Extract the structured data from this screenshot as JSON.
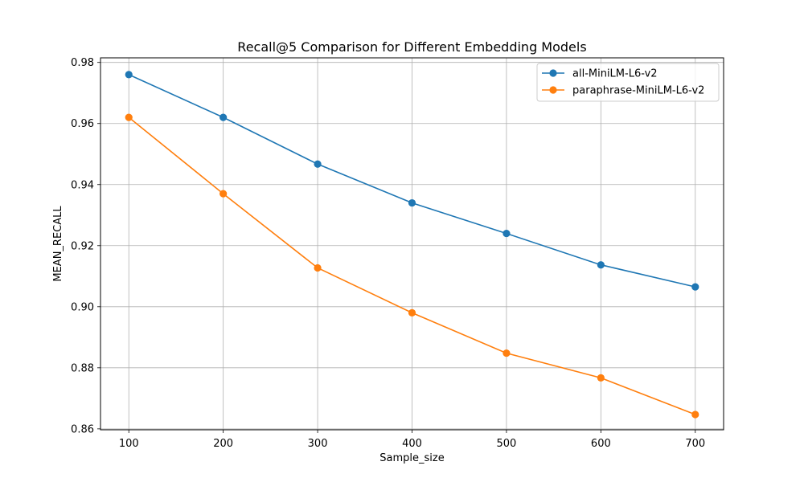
{
  "chart_data": {
    "type": "line",
    "title": "Recall@5 Comparison for Different Embedding Models",
    "xlabel": "Sample_size",
    "ylabel": "MEAN_RECALL",
    "x": [
      100,
      200,
      300,
      400,
      500,
      600,
      700
    ],
    "xticks": [
      "100",
      "200",
      "300",
      "400",
      "500",
      "600",
      "700"
    ],
    "yticks": [
      "0.86",
      "0.88",
      "0.90",
      "0.92",
      "0.94",
      "0.96",
      "0.98"
    ],
    "xlim": [
      70,
      730
    ],
    "ylim": [
      0.8597,
      0.9815
    ],
    "grid": true,
    "legend_position": "top-right",
    "series": [
      {
        "name": "all-MiniLM-L6-v2",
        "color": "#1f77b4",
        "values": [
          0.976,
          0.962,
          0.9467,
          0.934,
          0.924,
          0.9137,
          0.9065
        ]
      },
      {
        "name": "paraphrase-MiniLM-L6-v2",
        "color": "#ff7f0e",
        "values": [
          0.962,
          0.937,
          0.9127,
          0.898,
          0.8848,
          0.8767,
          0.8647
        ]
      }
    ]
  }
}
